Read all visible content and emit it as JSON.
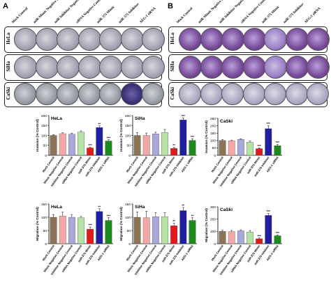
{
  "panels": {
    "a_label": "A",
    "b_label": "B",
    "a_columns": [
      "Mock Control",
      "miR-Mimic Negative Control",
      "miR-Inhibitor Negative Control",
      "siRNA Negative Control",
      "miR-375 Mimic",
      "miR-375 Inhibitor",
      "AEG-1 siRNA"
    ],
    "b_columns": [
      "Mock Control",
      "miR-Mimic Negative Control",
      "miR-Inhibitor Negative Control",
      "siRNA Negative Control",
      "miR-375 Mimic",
      "miR-375 Inhibitor",
      "AEG-1 siRNA"
    ],
    "rows": [
      "HeLa",
      "SiHa",
      "CaSki"
    ]
  },
  "colors": {
    "mock": "#8B7355",
    "mimic_nc": "#F4A7A7",
    "inhibitor_nc": "#A9A9D9",
    "sirna_nc": "#B5E3A5",
    "mimic": "#E31A1C",
    "inhibitor": "#1F1FA0",
    "aeg1_sirna": "#1E8A1E",
    "stain_a": "#9a93a6",
    "stain_b": "#7d4f9e"
  },
  "chart_data": [
    {
      "type": "bar",
      "title": "HeLa",
      "ylabel": "Invasion (% Control)",
      "ylim": [
        0,
        200
      ],
      "yticks": [
        0,
        50,
        100,
        150,
        200
      ],
      "categories": [
        "Mock Control",
        "Mimic Negative Control",
        "Inhibitor Negative Control",
        "siRNA Negative Control",
        "miR-375 Mimic",
        "miR-375 Inhibitor",
        "AEG-1 siRNA"
      ],
      "values": [
        100,
        109,
        106,
        117,
        37,
        140,
        72
      ],
      "errors": [
        4,
        4,
        5,
        6,
        4,
        8,
        6
      ],
      "annotations": [
        "",
        "",
        "",
        "",
        "***",
        "**",
        "***"
      ]
    },
    {
      "type": "bar",
      "title": "SiHa",
      "ylabel": "Invasion (% Control)",
      "ylim": [
        0,
        200
      ],
      "yticks": [
        0,
        50,
        100,
        150,
        200
      ],
      "categories": [
        "Mock Control",
        "Mimic Negative Control",
        "Inhibitor Negative Control",
        "siRNA Negative Control",
        "miR-375 Mimic",
        "miR-375 Inhibitor",
        "AEG-1 siRNA"
      ],
      "values": [
        100,
        100,
        108,
        115,
        35,
        178,
        75
      ],
      "errors": [
        15,
        12,
        8,
        15,
        5,
        10,
        8
      ],
      "annotations": [
        "",
        "",
        "",
        "",
        "**",
        "***",
        "***"
      ]
    },
    {
      "type": "bar",
      "title": "CaSki",
      "ylabel": "Invasion (% Control)",
      "ylim": [
        0,
        250
      ],
      "yticks": [
        0,
        50,
        100,
        150,
        200,
        250
      ],
      "categories": [
        "Mock Control",
        "Mimic Negative Control",
        "Inhibitor Negative Control",
        "siRNA Negative Control",
        "miR-375 Mimic",
        "miR-375 Inhibitor",
        "AEG-1 siRNA"
      ],
      "values": [
        100,
        98,
        108,
        88,
        45,
        180,
        65
      ],
      "errors": [
        6,
        5,
        4,
        10,
        5,
        20,
        8
      ],
      "annotations": [
        "",
        "",
        "",
        "",
        "***",
        "***",
        "***"
      ]
    },
    {
      "type": "bar",
      "title": "HeLa",
      "ylabel": "Migration (% Control)",
      "ylim": [
        0,
        150
      ],
      "yticks": [
        0,
        50,
        100,
        150
      ],
      "categories": [
        "Mock Control",
        "Mimic Negative Control",
        "Inhibitor Negative Control",
        "siRNA Negative Control",
        "miR-375 Mimic",
        "miR-375 Inhibitor",
        "AEG-1 siRNA"
      ],
      "values": [
        100,
        105,
        100,
        98,
        55,
        122,
        88
      ],
      "errors": [
        10,
        14,
        10,
        5,
        8,
        10,
        10
      ],
      "annotations": [
        "",
        "",
        "",
        "",
        "***",
        "**",
        "***"
      ]
    },
    {
      "type": "bar",
      "title": "SiHa",
      "ylabel": "Migration (% Control)",
      "ylim": [
        0,
        150
      ],
      "yticks": [
        0,
        50,
        100,
        150
      ],
      "categories": [
        "Mock Control",
        "Mimic Negative Control",
        "Inhibitor Negative Control",
        "siRNA Negative Control",
        "miR-375 Mimic",
        "miR-375 Inhibitor",
        "AEG-1 siRNA"
      ],
      "values": [
        100,
        98,
        102,
        102,
        68,
        125,
        88
      ],
      "errors": [
        20,
        25,
        15,
        15,
        10,
        12,
        10
      ],
      "annotations": [
        "",
        "",
        "",
        "",
        "**",
        "**",
        "**"
      ]
    },
    {
      "type": "bar",
      "title": "CaSki",
      "ylabel": "Migration (% Control)",
      "ylim": [
        0,
        300
      ],
      "yticks": [
        0,
        100,
        200,
        300
      ],
      "categories": [
        "Mock Control",
        "Mimic Negative Control",
        "Inhibitor Negative Control",
        "siRNA Negative Control",
        "miR-375 Mimic",
        "miR-375 Inhibitor",
        "AEG-1 siRNA"
      ],
      "values": [
        100,
        98,
        105,
        95,
        40,
        230,
        65
      ],
      "errors": [
        10,
        10,
        8,
        12,
        6,
        15,
        6
      ],
      "annotations": [
        "",
        "",
        "",
        "",
        "***",
        "***",
        "***"
      ]
    }
  ]
}
